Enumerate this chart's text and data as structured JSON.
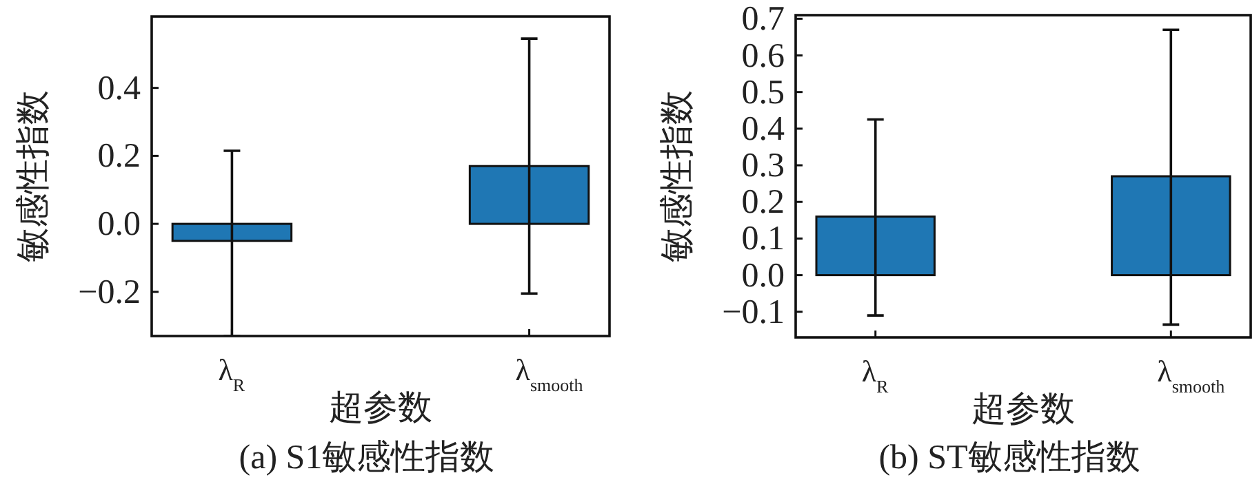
{
  "chart_data": [
    {
      "type": "bar",
      "title": "(a) S1敏感性指数",
      "xlabel": "超参数",
      "ylabel": "敏感性指数",
      "categories": [
        "λ$_{R}$",
        "λ$_{smooth}$"
      ],
      "values": [
        -0.05,
        0.17
      ],
      "color": "#1f77b4",
      "errors": [
        [
          -0.33,
          0.215
        ],
        [
          -0.205,
          0.545
        ]
      ],
      "ylim": [
        -0.33,
        0.61
      ],
      "yticks": [
        {
          "value": -0.2,
          "label": "−0.2"
        },
        {
          "value": 0,
          "label": "0.0"
        },
        {
          "value": 0.2,
          "label": "0.2"
        },
        {
          "value": 0.4,
          "label": "0.4"
        }
      ]
    },
    {
      "type": "bar",
      "title": "(b) ST敏感性指数",
      "xlabel": "超参数",
      "ylabel": "敏感性指数",
      "categories": [
        "λ$_{R}$",
        "λ$_{smooth}$"
      ],
      "values": [
        0.16,
        0.27
      ],
      "color": "#1f77b4",
      "errors": [
        [
          -0.11,
          0.425
        ],
        [
          -0.135,
          0.67
        ]
      ],
      "ylim": [
        -0.17,
        0.71
      ],
      "yticks": [
        {
          "value": -0.1,
          "label": "−0.1"
        },
        {
          "value": 0,
          "label": "0.0"
        },
        {
          "value": 0.1,
          "label": "0.1"
        },
        {
          "value": 0.2,
          "label": "0.2"
        },
        {
          "value": 0.3,
          "label": "0.3"
        },
        {
          "value": 0.4,
          "label": "0.4"
        },
        {
          "value": 0.5,
          "label": "0.5"
        },
        {
          "value": 0.6,
          "label": "0.6"
        },
        {
          "value": 0.7,
          "label": "0.7"
        }
      ]
    }
  ]
}
